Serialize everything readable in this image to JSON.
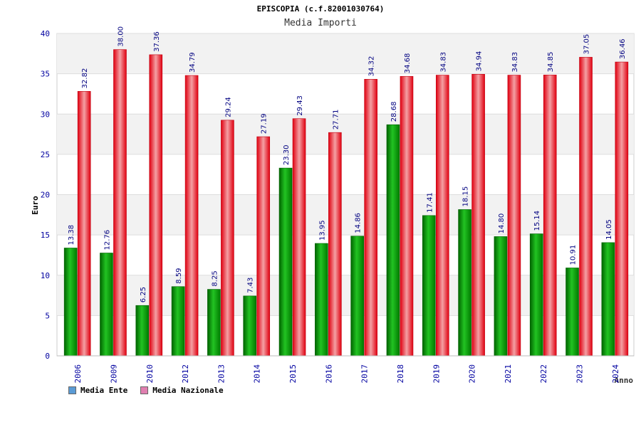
{
  "chart_data": {
    "type": "bar",
    "title": "EPISCOPIA (c.f.82001030764)",
    "subtitle": "Media Importi",
    "xlabel": "Anno",
    "ylabel": "Euro",
    "ylim": [
      0,
      40
    ],
    "yticks": [
      0,
      5,
      10,
      15,
      20,
      25,
      30,
      35,
      40
    ],
    "categories": [
      "2006",
      "2009",
      "2010",
      "2012",
      "2013",
      "2014",
      "2015",
      "2016",
      "2017",
      "2018",
      "2019",
      "2020",
      "2021",
      "2022",
      "2023",
      "2024"
    ],
    "series": [
      {
        "name": "Media Ente",
        "color": "#00a000",
        "values": [
          13.38,
          12.76,
          6.25,
          8.59,
          8.25,
          7.43,
          23.3,
          13.95,
          14.86,
          28.68,
          17.41,
          18.15,
          14.8,
          15.14,
          10.91,
          14.05
        ],
        "labels": [
          "13.38",
          "12.76",
          "6.25",
          "8.59",
          "8.25",
          "7.43",
          "23.30",
          "13.95",
          "14.86",
          "28.68",
          "17.41",
          "18.15",
          "14.80",
          "15.14",
          "10.91",
          "14.05"
        ]
      },
      {
        "name": "Media Nazionale",
        "color": "#e8212a",
        "values": [
          32.82,
          38.0,
          37.36,
          34.79,
          29.24,
          27.19,
          29.43,
          27.71,
          34.32,
          34.68,
          34.83,
          34.94,
          34.83,
          34.85,
          37.05,
          36.46
        ],
        "labels": [
          "32.82",
          "38.00",
          "37.36",
          "34.79",
          "29.24",
          "27.19",
          "29.43",
          "27.71",
          "34.32",
          "34.68",
          "34.83",
          "34.94",
          "34.83",
          "34.85",
          "37.05",
          "36.46"
        ]
      }
    ],
    "legend": [
      "Media Ente",
      "Media Nazionale"
    ],
    "legend_colors": [
      "#5b9bd5",
      "#e07fb0"
    ]
  }
}
